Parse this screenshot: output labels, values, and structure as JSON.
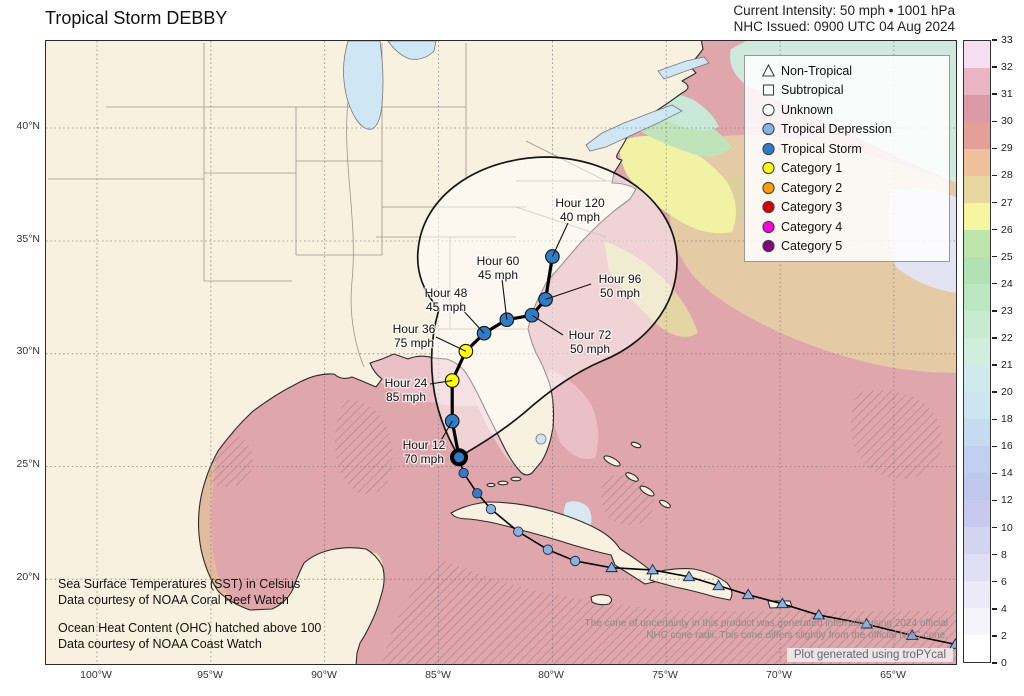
{
  "header": {
    "title": "Tropical Storm DEBBY",
    "intensity_line": "Current Intensity: 50 mph • 1001 hPa",
    "issued_line": "NHC Issued: 0900 UTC 04 Aug 2024"
  },
  "axes": {
    "lat": [
      "40°N",
      "35°N",
      "30°N",
      "25°N",
      "20°N"
    ],
    "lon": [
      "100°W",
      "95°W",
      "90°W",
      "85°W",
      "80°W",
      "75°W",
      "70°W",
      "65°W"
    ]
  },
  "legend": {
    "items": [
      {
        "shape": "triangle",
        "fill": "#ffffff",
        "label": "Non-Tropical"
      },
      {
        "shape": "square",
        "fill": "#ffffff",
        "label": "Subtropical"
      },
      {
        "shape": "circle",
        "fill": "#ffffff",
        "label": "Unknown"
      },
      {
        "shape": "circle",
        "fill": "#85b3e3",
        "label": "Tropical Depression"
      },
      {
        "shape": "circle",
        "fill": "#2e7dc8",
        "label": "Tropical Storm"
      },
      {
        "shape": "circle",
        "fill": "#ffff00",
        "label": "Category 1"
      },
      {
        "shape": "circle",
        "fill": "#ff9e00",
        "label": "Category 2"
      },
      {
        "shape": "circle",
        "fill": "#d80000",
        "label": "Category 3"
      },
      {
        "shape": "circle",
        "fill": "#ff00dc",
        "label": "Category 4"
      },
      {
        "shape": "circle",
        "fill": "#800080",
        "label": "Category 5"
      }
    ]
  },
  "colorbar": {
    "ticks": [
      "0",
      "2",
      "4",
      "6",
      "8",
      "10",
      "12",
      "14",
      "16",
      "18",
      "20",
      "21",
      "22",
      "23",
      "24",
      "25",
      "26",
      "27",
      "28",
      "29",
      "30",
      "31",
      "32",
      "33"
    ],
    "colors": [
      "#ffffff",
      "#f6f4fb",
      "#ece9f8",
      "#e0def4",
      "#d3d4f0",
      "#c7c9ed",
      "#bec7ec",
      "#c0d0ee",
      "#c6dbf0",
      "#cce5f1",
      "#cfeaea",
      "#cfeedd",
      "#c6ebcf",
      "#bbe7c1",
      "#b0e2b4",
      "#bde5ab",
      "#f6f6a0",
      "#e8d8a0",
      "#eec09c",
      "#e2a099",
      "#dc9aa6",
      "#e9b5c4",
      "#f5dff0"
    ]
  },
  "colors": {
    "td": "#85b3e3",
    "ts": "#2e7dc8",
    "cat1": "#ffff00",
    "cat2": "#ff9e00",
    "cat3": "#d80000",
    "cat4": "#ff00dc",
    "cat5": "#800080",
    "ocean_base": "#dfa6ab",
    "land": "#f9f1df",
    "lake": "#cfe7f5"
  },
  "track": {
    "past": [
      {
        "lat": 17.1,
        "lon": -62.3,
        "marker": "triangle",
        "cat": "td"
      },
      {
        "lat": 17.5,
        "lon": -64.2,
        "marker": "triangle",
        "cat": "td"
      },
      {
        "lat": 18.0,
        "lon": -66.2,
        "marker": "triangle",
        "cat": "td"
      },
      {
        "lat": 18.4,
        "lon": -68.3,
        "marker": "triangle",
        "cat": "td"
      },
      {
        "lat": 18.9,
        "lon": -69.9,
        "marker": "triangle",
        "cat": "td"
      },
      {
        "lat": 19.3,
        "lon": -71.4,
        "marker": "triangle",
        "cat": "td"
      },
      {
        "lat": 19.7,
        "lon": -72.7,
        "marker": "triangle",
        "cat": "td"
      },
      {
        "lat": 20.1,
        "lon": -74.0,
        "marker": "triangle",
        "cat": "td"
      },
      {
        "lat": 20.4,
        "lon": -75.6,
        "marker": "triangle",
        "cat": "td"
      },
      {
        "lat": 20.5,
        "lon": -77.4,
        "marker": "triangle",
        "cat": "td"
      },
      {
        "lat": 20.8,
        "lon": -79.0,
        "marker": "circle",
        "cat": "td"
      },
      {
        "lat": 21.3,
        "lon": -80.2,
        "marker": "circle",
        "cat": "td"
      },
      {
        "lat": 22.1,
        "lon": -81.5,
        "marker": "circle",
        "cat": "td"
      },
      {
        "lat": 23.1,
        "lon": -82.7,
        "marker": "circle",
        "cat": "td"
      },
      {
        "lat": 23.8,
        "lon": -83.3,
        "marker": "circle",
        "cat": "ts"
      },
      {
        "lat": 24.7,
        "lon": -83.9,
        "marker": "circle",
        "cat": "ts"
      }
    ],
    "current": {
      "lat": 25.4,
      "lon": -84.1,
      "cat": "ts"
    },
    "forecast": [
      {
        "hour": "Hour 12",
        "wind": "70 mph",
        "lat": 27.0,
        "lon": -84.4,
        "cat": "ts"
      },
      {
        "hour": "Hour 24",
        "wind": "85 mph",
        "lat": 28.8,
        "lon": -84.4,
        "cat": "cat1"
      },
      {
        "hour": "Hour 36",
        "wind": "75 mph",
        "lat": 30.1,
        "lon": -83.8,
        "cat": "cat1"
      },
      {
        "hour": "Hour 48",
        "wind": "45 mph",
        "lat": 30.9,
        "lon": -83.0,
        "cat": "ts"
      },
      {
        "hour": "Hour 60",
        "wind": "45 mph",
        "lat": 31.5,
        "lon": -82.0,
        "cat": "ts"
      },
      {
        "hour": "Hour 72",
        "wind": "50 mph",
        "lat": 31.7,
        "lon": -80.9,
        "cat": "ts"
      },
      {
        "hour": "Hour 96",
        "wind": "50 mph",
        "lat": 32.4,
        "lon": -80.3,
        "cat": "ts"
      },
      {
        "hour": "Hour 120",
        "wind": "40 mph",
        "lat": 34.3,
        "lon": -80.0,
        "cat": "ts"
      }
    ]
  },
  "credits": {
    "sst1": "Sea Surface Temperatures (SST) in Celsius",
    "sst2": "Data courtesy of NOAA Coral Reef Watch",
    "ohc1": "Ocean Heat Content (OHC) hatched above 100",
    "ohc2": "Data courtesy of NOAA Coast Watch"
  },
  "footer": {
    "disclaimer1": "The cone of uncertainty in this product was generated internally using 2024 official",
    "disclaimer2": "NHC cone radii. This cone differs slightly from the official NHC cone.",
    "watermark": "Plot generated using troPYcal"
  }
}
